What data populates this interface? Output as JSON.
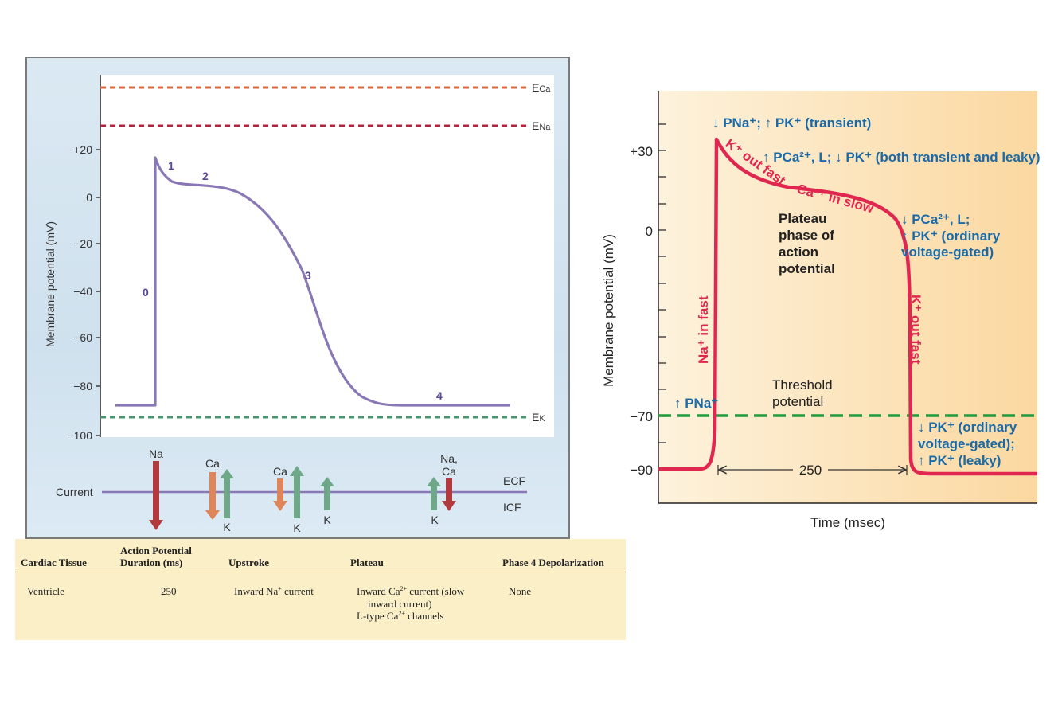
{
  "left_chart": {
    "y_axis_label": "Membrane potential (mV)",
    "y_ticks": [
      "+20",
      "0",
      "−20",
      "−40",
      "−60",
      "−80",
      "−100"
    ],
    "reference_lines": [
      {
        "label": "ECa",
        "main": "E",
        "sub": "Ca",
        "color": "#d9693f"
      },
      {
        "label": "ENa",
        "main": "E",
        "sub": "Na",
        "color": "#b3253e"
      },
      {
        "label": "EK",
        "main": "E",
        "sub": "K",
        "color": "#4a9470"
      }
    ],
    "phase_labels": [
      "0",
      "1",
      "2",
      "3",
      "4"
    ],
    "curve_color": "#8a78b6",
    "current_label": "Current",
    "ecf_label": "ECF",
    "icf_label": "ICF",
    "ion_labels": {
      "na": "Na",
      "ca1": "Ca",
      "k1": "K",
      "ca2": "Ca",
      "k2": "K",
      "k3": "K",
      "na_ca": [
        "Na,",
        "Ca"
      ],
      "k4": "K"
    },
    "arrow_colors": {
      "na": "#b33a3c",
      "ca": "#e08559",
      "k": "#6ea888"
    }
  },
  "right_chart": {
    "y_axis_label": "Membrane potential (mV)",
    "x_axis_label": "Time (msec)",
    "y_ticks": [
      "+30",
      "0",
      "−70",
      "−90"
    ],
    "duration_label": "250",
    "curve_color": "#e0274f",
    "threshold_color": "#1f9a3c",
    "annotation_color": "#1a6aa8",
    "threshold_label": [
      "Threshold",
      "potential"
    ],
    "plateau_label": [
      "Plateau",
      "phase of",
      "action",
      "potential"
    ],
    "curve_labels": {
      "k_out_fast_top": "K⁺ out fast",
      "ca_in_slow": "Ca²⁺ in slow",
      "na_in_fast": "Na⁺ in fast",
      "k_out_fast_right": "K⁺ out fast"
    },
    "annotations": {
      "top": "↓ PNa⁺; ↑ PK⁺ (transient)",
      "plateau_top": "↑ PCa²⁺, L; ↓ PK⁺ (both transient and leaky)",
      "repol_1": "↓ PCa²⁺, L;",
      "repol_2": "↑ PK⁺ (ordinary",
      "repol_3": "voltage-gated)",
      "threshold": "↑ PNa⁺",
      "rest_1": "↓ PK⁺ (ordinary",
      "rest_2": "voltage-gated);",
      "rest_3": "↑ PK⁺ (leaky)"
    }
  },
  "table": {
    "headers": [
      "Cardiac Tissue",
      "Action Potential Duration (ms)",
      "Upstroke",
      "Plateau",
      "Phase 4 Depolarization"
    ],
    "header_lines": {
      "duration_1": "Action Potential",
      "duration_2": "Duration (ms)"
    },
    "row": {
      "tissue": "Ventricle",
      "duration": "250",
      "upstroke": "Inward Na⁺ current",
      "plateau_1": "Inward Ca²⁺ current (slow",
      "plateau_2": "inward current)",
      "plateau_3": "L-type Ca²⁺ channels",
      "phase4": "None"
    }
  }
}
